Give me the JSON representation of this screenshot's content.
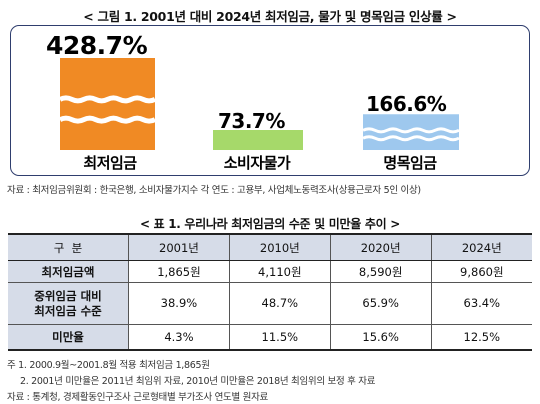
{
  "figure": {
    "title": "< 그림 1. 2001년 대비 2024년 최저임금, 물가 및 명목임금 인상률 >",
    "chart_data": {
      "type": "bar",
      "categories": [
        "최저임금",
        "소비자물가",
        "명목임금"
      ],
      "values": [
        428.7,
        73.7,
        166.6
      ],
      "value_labels": [
        "428.7%",
        "73.7%",
        "166.6%"
      ],
      "colors": [
        "#f08a24",
        "#a6d96a",
        "#9ec8ee"
      ]
    },
    "source": "자료 : 최저임금위원회 : 한국은행, 소비자물가지수 각 연도 : 고용부, 사업체노동력조사(상용근로자 5인 이상)"
  },
  "table": {
    "title": "< 표 1. 우리나라 최저임금의 수준 및 미만율 추이 >",
    "headers": [
      "구  분",
      "2001년",
      "2010년",
      "2020년",
      "2024년"
    ],
    "rows": [
      {
        "label": "최저임금액",
        "values": [
          "1,865원",
          "4,110원",
          "8,590원",
          "9,860원"
        ]
      },
      {
        "label_line1": "중위임금 대비",
        "label_line2": "최저임금 수준",
        "values": [
          "38.9%",
          "48.7%",
          "65.9%",
          "63.4%"
        ]
      },
      {
        "label": "미만율",
        "values": [
          "4.3%",
          "11.5%",
          "15.6%",
          "12.5%"
        ]
      }
    ]
  },
  "notes": {
    "n1": "주 1. 2000.9월~2001.8월 적용 최저임금 1,865원",
    "n2": "2. 2001년 미만율은 2011년 최임위 자료, 2010년 미만율은 2018년 최임위의 보정 후 자료",
    "source": "자료 : 통계청, 경제활동인구조사 근로형태별 부가조사 연도별 원자료"
  }
}
